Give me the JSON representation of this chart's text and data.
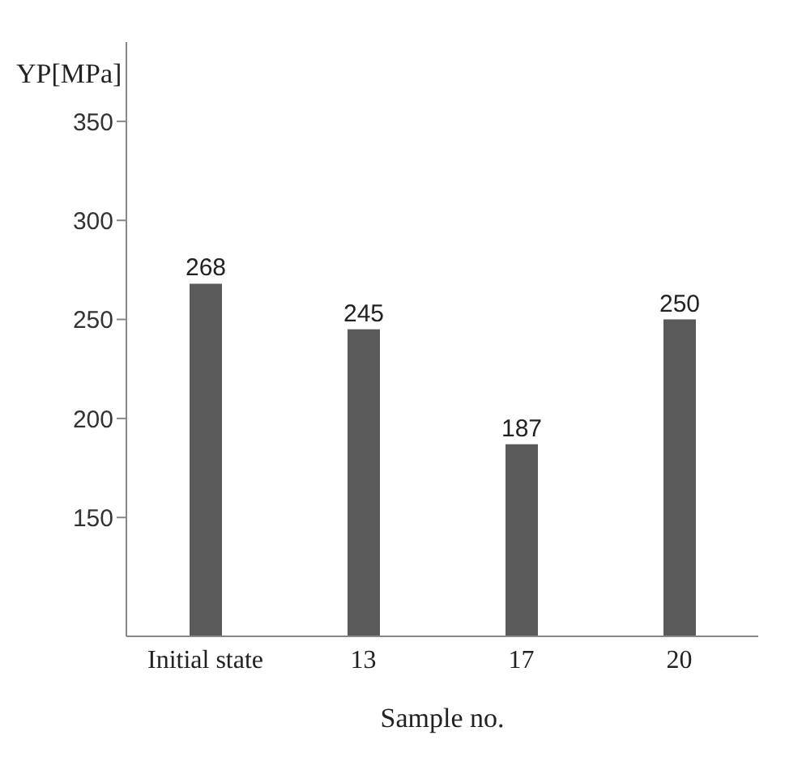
{
  "chart_data": {
    "type": "bar",
    "ylabel": "YP[MPa]",
    "xlabel": "Sample no.",
    "categories": [
      "Initial state",
      "13",
      "17",
      "20"
    ],
    "values": [
      268,
      245,
      187,
      250
    ],
    "color": "#5a5a5a",
    "ylim": [
      90,
      390
    ],
    "yticks": [
      150,
      200,
      250,
      300,
      350
    ],
    "data_labels": true,
    "grid": false,
    "legend": false
  }
}
